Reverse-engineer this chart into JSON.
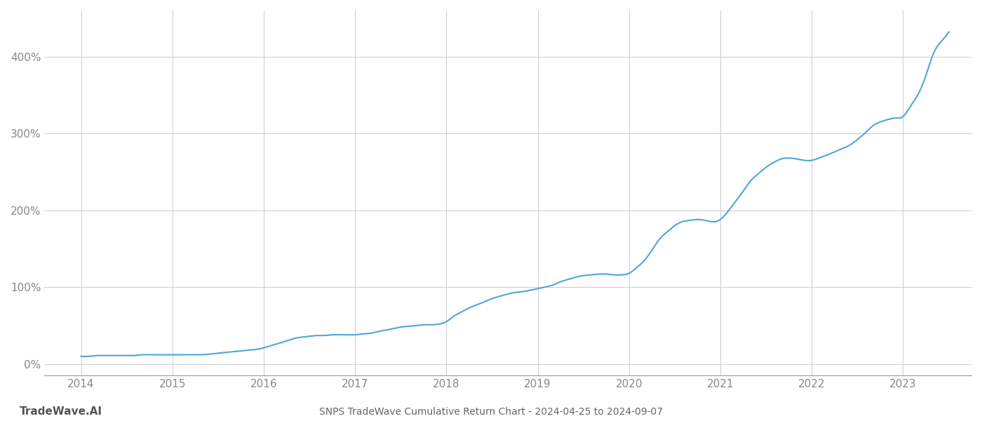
{
  "title": "SNPS TradeWave Cumulative Return Chart - 2024-04-25 to 2024-09-07",
  "watermark": "TradeWave.AI",
  "line_color": "#4da6d9",
  "background_color": "#ffffff",
  "grid_color": "#cccccc",
  "axis_color": "#999999",
  "tick_label_color": "#888888",
  "title_color": "#666666",
  "watermark_color": "#555555",
  "x_years": [
    2014,
    2015,
    2016,
    2017,
    2018,
    2019,
    2020,
    2021,
    2022,
    2023
  ],
  "y_ticks": [
    0,
    100,
    200,
    300,
    400
  ],
  "y_labels": [
    "0%",
    "100%",
    "200%",
    "300%",
    "400%"
  ],
  "xlim": [
    2013.6,
    2023.75
  ],
  "ylim": [
    -15,
    460
  ],
  "x_data": [
    2014.0,
    2014.08,
    2014.17,
    2014.25,
    2014.33,
    2014.42,
    2014.5,
    2014.58,
    2014.67,
    2014.75,
    2014.83,
    2014.92,
    2015.0,
    2015.08,
    2015.17,
    2015.25,
    2015.33,
    2015.42,
    2015.5,
    2015.58,
    2015.67,
    2015.75,
    2015.83,
    2015.92,
    2016.0,
    2016.08,
    2016.17,
    2016.25,
    2016.33,
    2016.42,
    2016.5,
    2016.58,
    2016.67,
    2016.75,
    2016.83,
    2016.92,
    2017.0,
    2017.08,
    2017.17,
    2017.25,
    2017.33,
    2017.42,
    2017.5,
    2017.58,
    2017.67,
    2017.75,
    2017.83,
    2017.92,
    2018.0,
    2018.08,
    2018.17,
    2018.25,
    2018.33,
    2018.42,
    2018.5,
    2018.58,
    2018.67,
    2018.75,
    2018.83,
    2018.92,
    2019.0,
    2019.08,
    2019.17,
    2019.25,
    2019.33,
    2019.42,
    2019.5,
    2019.58,
    2019.67,
    2019.75,
    2019.83,
    2019.92,
    2020.0,
    2020.08,
    2020.17,
    2020.25,
    2020.33,
    2020.42,
    2020.5,
    2020.58,
    2020.67,
    2020.75,
    2020.83,
    2020.92,
    2021.0,
    2021.08,
    2021.17,
    2021.25,
    2021.33,
    2021.42,
    2021.5,
    2021.58,
    2021.67,
    2021.75,
    2021.83,
    2021.92,
    2022.0,
    2022.08,
    2022.17,
    2022.25,
    2022.33,
    2022.42,
    2022.5,
    2022.58,
    2022.67,
    2022.75,
    2022.83,
    2022.92,
    2023.0,
    2023.08,
    2023.17,
    2023.25,
    2023.33,
    2023.42,
    2023.5
  ],
  "y_data": [
    10,
    10,
    11,
    11,
    11,
    11,
    11,
    11,
    12,
    12,
    12,
    12,
    12,
    12,
    12,
    12,
    12,
    13,
    14,
    15,
    16,
    17,
    18,
    19,
    21,
    24,
    27,
    30,
    33,
    35,
    36,
    37,
    37,
    38,
    38,
    38,
    38,
    39,
    40,
    42,
    44,
    46,
    48,
    49,
    50,
    51,
    51,
    52,
    55,
    62,
    68,
    73,
    77,
    81,
    85,
    88,
    91,
    93,
    94,
    96,
    98,
    100,
    103,
    107,
    110,
    113,
    115,
    116,
    117,
    117,
    116,
    116,
    118,
    125,
    135,
    148,
    162,
    172,
    180,
    185,
    187,
    188,
    187,
    185,
    188,
    198,
    212,
    225,
    238,
    248,
    256,
    262,
    267,
    268,
    267,
    265,
    265,
    268,
    272,
    276,
    280,
    285,
    292,
    300,
    310,
    315,
    318,
    320,
    322,
    335,
    352,
    375,
    403,
    420,
    432
  ],
  "line_width": 1.5,
  "figsize": [
    14.0,
    6.0
  ],
  "dpi": 100,
  "font_family": "DejaVu Sans"
}
